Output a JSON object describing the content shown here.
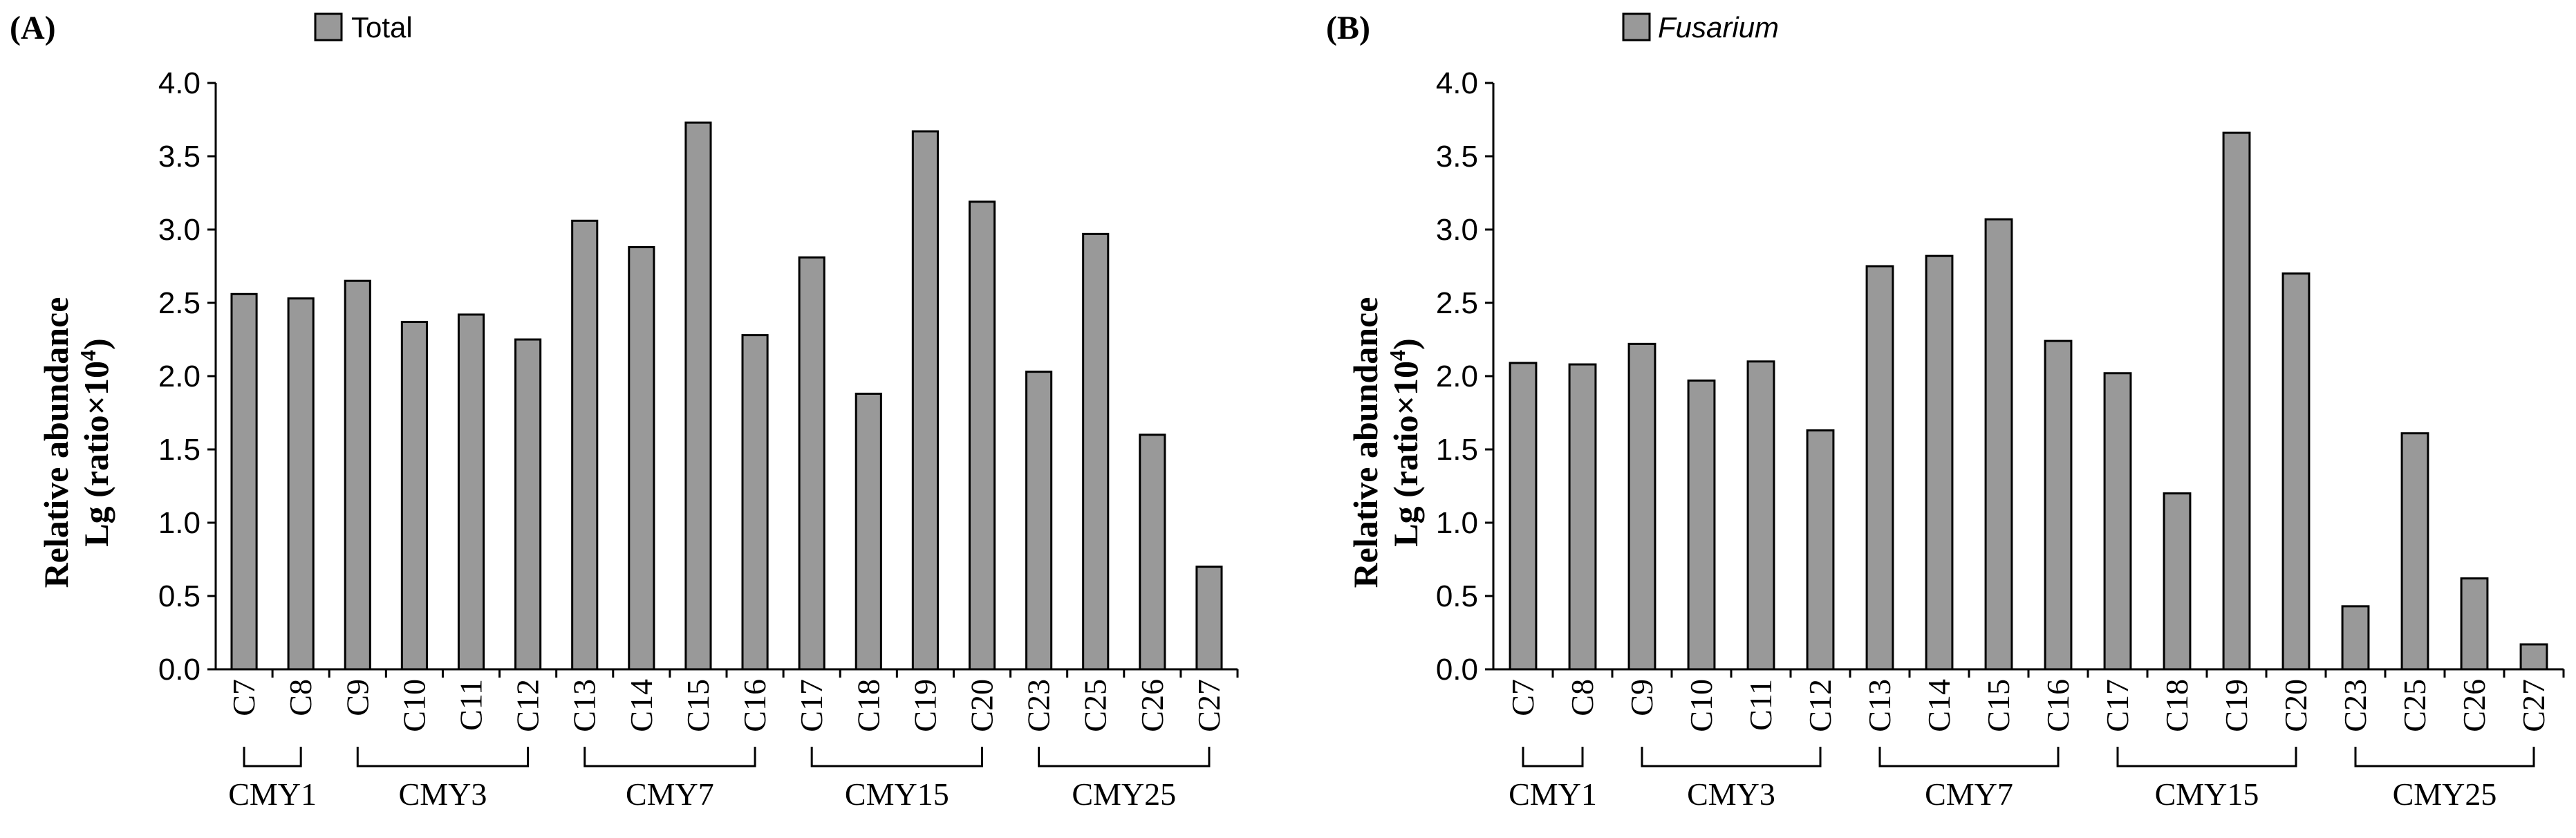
{
  "chart_data": [
    {
      "type": "bar",
      "panel_label": "(A)",
      "legend": "Total",
      "legend_italic": false,
      "ylabel_line1": "Relative abundance",
      "ylabel_line2_main": "Lg (ratio×10",
      "ylabel_line2_sup": "4",
      "ylabel_line2_end": ")",
      "ylim": [
        0,
        4.0
      ],
      "yticks": [
        "0.0",
        "0.5",
        "1.0",
        "1.5",
        "2.0",
        "2.5",
        "3.0",
        "3.5",
        "4.0"
      ],
      "categories": [
        "C7",
        "C8",
        "C9",
        "C10",
        "C11",
        "C12",
        "C13",
        "C14",
        "C15",
        "C16",
        "C17",
        "C18",
        "C19",
        "C20",
        "C23",
        "C25",
        "C26",
        "C27"
      ],
      "values": [
        2.56,
        2.53,
        2.65,
        2.37,
        2.42,
        2.25,
        3.06,
        2.88,
        3.73,
        2.28,
        2.81,
        1.88,
        3.67,
        3.19,
        2.03,
        2.97,
        1.6,
        0.7
      ],
      "groups": [
        {
          "label": "CMY1",
          "start": 0,
          "end": 1
        },
        {
          "label": "CMY3",
          "start": 2,
          "end": 5
        },
        {
          "label": "CMY7",
          "start": 6,
          "end": 9
        },
        {
          "label": "CMY15",
          "start": 10,
          "end": 13
        },
        {
          "label": "CMY25",
          "start": 14,
          "end": 17
        }
      ],
      "bar_color": "#999999"
    },
    {
      "type": "bar",
      "panel_label": "(B)",
      "legend": "Fusarium",
      "legend_italic": true,
      "ylabel_line1": "Relative abundance",
      "ylabel_line2_main": "Lg (ratio×10",
      "ylabel_line2_sup": "4",
      "ylabel_line2_end": ")",
      "ylim": [
        0,
        4.0
      ],
      "yticks": [
        "0.0",
        "0.5",
        "1.0",
        "1.5",
        "2.0",
        "2.5",
        "3.0",
        "3.5",
        "4.0"
      ],
      "categories": [
        "C7",
        "C8",
        "C9",
        "C10",
        "C11",
        "C12",
        "C13",
        "C14",
        "C15",
        "C16",
        "C17",
        "C18",
        "C19",
        "C20",
        "C23",
        "C25",
        "C26",
        "C27"
      ],
      "values": [
        2.09,
        2.08,
        2.22,
        1.97,
        2.1,
        1.63,
        2.75,
        2.82,
        3.07,
        2.24,
        2.02,
        1.2,
        3.66,
        2.7,
        0.43,
        1.61,
        0.62,
        0.17
      ],
      "groups": [
        {
          "label": "CMY1",
          "start": 0,
          "end": 1
        },
        {
          "label": "CMY3",
          "start": 2,
          "end": 5
        },
        {
          "label": "CMY7",
          "start": 6,
          "end": 9
        },
        {
          "label": "CMY15",
          "start": 10,
          "end": 13
        },
        {
          "label": "CMY25",
          "start": 14,
          "end": 17
        }
      ],
      "bar_color": "#999999"
    }
  ]
}
